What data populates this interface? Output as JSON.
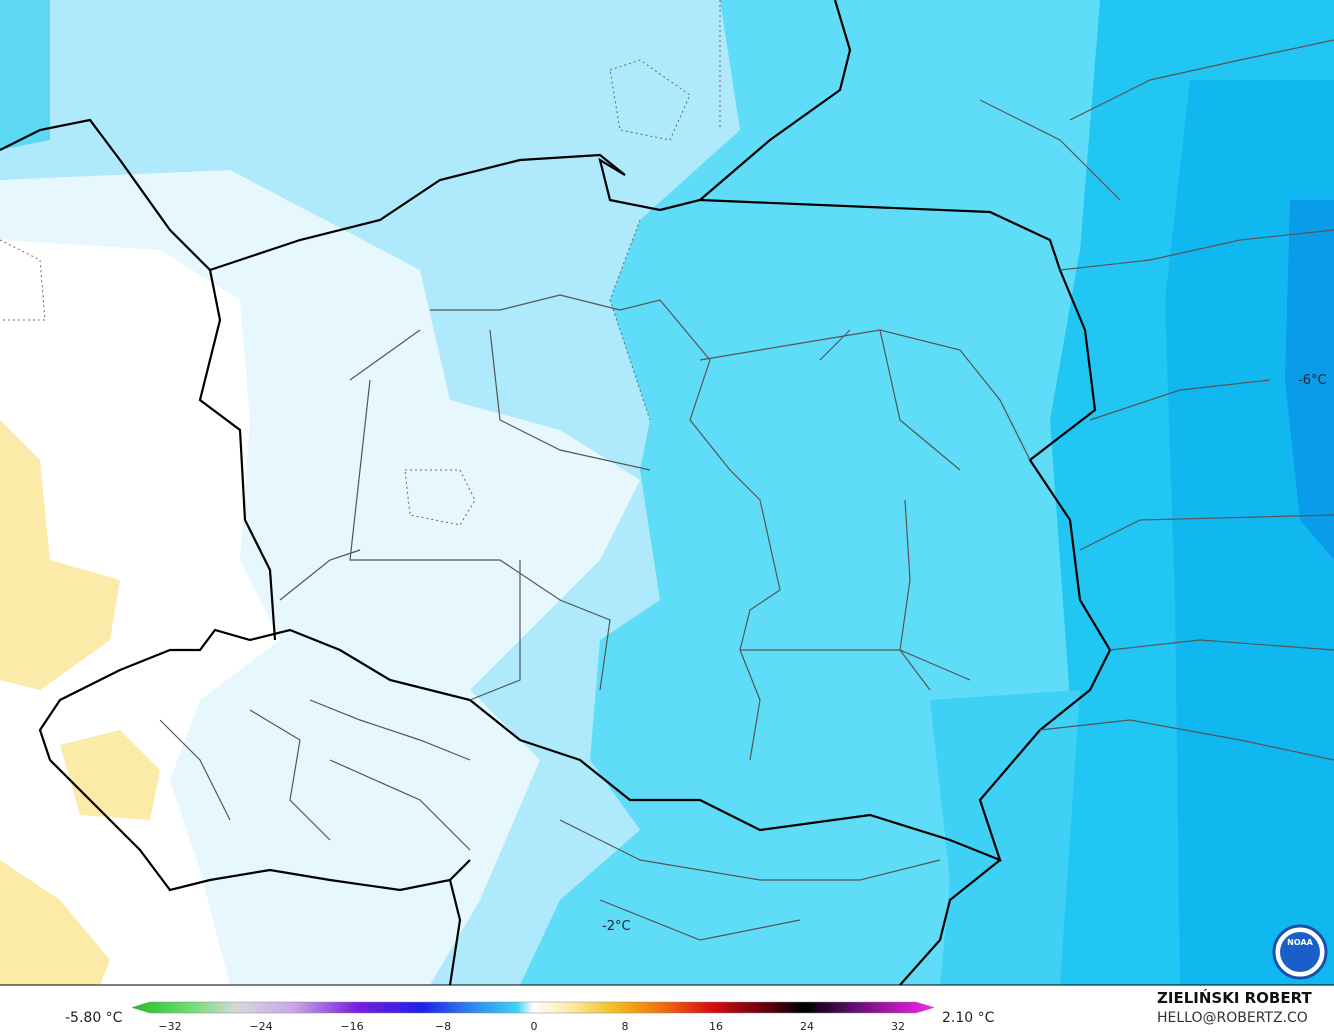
{
  "legend": {
    "min_label": "-5.80 °C",
    "max_label": "2.10 °C",
    "ticks": [
      "−32",
      "−24",
      "−16",
      "−8",
      "0",
      "8",
      "16",
      "24",
      "32"
    ]
  },
  "map": {
    "contour_labels": [
      "-6°C",
      "-2°C"
    ],
    "logo": "NOAA"
  },
  "credits": {
    "author": "ZIELIŃSKI ROBERT",
    "contact": "HELLO@ROBERTZ.CO"
  }
}
